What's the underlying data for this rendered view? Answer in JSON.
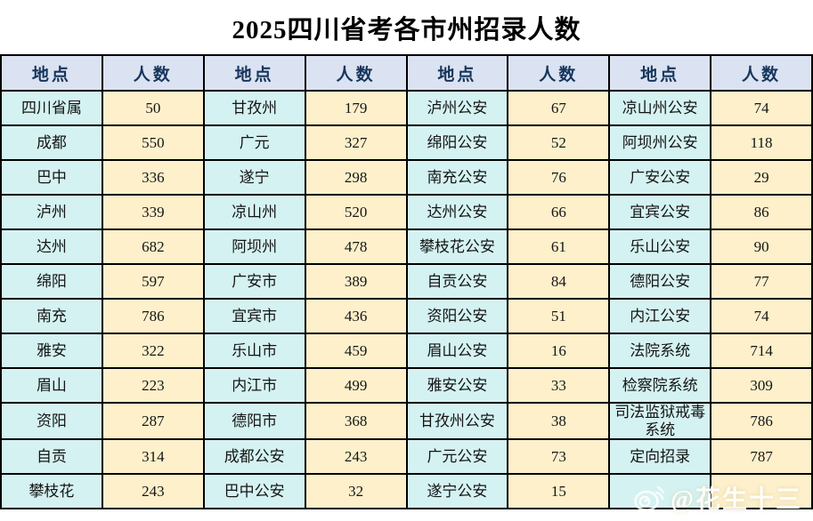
{
  "title": "2025四川省考各市州招录人数",
  "chart_data": {
    "type": "table",
    "title": "2025四川省考各市州招录人数",
    "column_headers": [
      "地点",
      "人数",
      "地点",
      "人数",
      "地点",
      "人数",
      "地点",
      "人数"
    ],
    "rows": [
      [
        "四川省属",
        "50",
        "甘孜州",
        "179",
        "泸州公安",
        "67",
        "凉山州公安",
        "74"
      ],
      [
        "成都",
        "550",
        "广元",
        "327",
        "绵阳公安",
        "52",
        "阿坝州公安",
        "118"
      ],
      [
        "巴中",
        "336",
        "遂宁",
        "298",
        "南充公安",
        "76",
        "广安公安",
        "29"
      ],
      [
        "泸州",
        "339",
        "凉山州",
        "520",
        "达州公安",
        "66",
        "宜宾公安",
        "86"
      ],
      [
        "达州",
        "682",
        "阿坝州",
        "478",
        "攀枝花公安",
        "61",
        "乐山公安",
        "90"
      ],
      [
        "绵阳",
        "597",
        "广安市",
        "389",
        "自贡公安",
        "84",
        "德阳公安",
        "77"
      ],
      [
        "南充",
        "786",
        "宜宾市",
        "436",
        "资阳公安",
        "51",
        "内江公安",
        "74"
      ],
      [
        "雅安",
        "322",
        "乐山市",
        "459",
        "眉山公安",
        "16",
        "法院系统",
        "714"
      ],
      [
        "眉山",
        "223",
        "内江市",
        "499",
        "雅安公安",
        "33",
        "检察院系统",
        "309"
      ],
      [
        "资阳",
        "287",
        "德阳市",
        "368",
        "甘孜州公安",
        "38",
        "司法监狱戒毒系统",
        "786"
      ],
      [
        "自贡",
        "314",
        "成都公安",
        "243",
        "广元公安",
        "73",
        "定向招录",
        "787"
      ],
      [
        "攀枝花",
        "243",
        "巴中公安",
        "32",
        "遂宁公安",
        "15",
        "",
        ""
      ]
    ]
  },
  "watermark": {
    "label": "@花生十三",
    "icon": "weibo-icon"
  },
  "colors": {
    "header_bg": "#dbe2f1",
    "location_bg": "#d5f2f2",
    "count_bg": "#fdf0cb",
    "border": "#000000",
    "header_text": "#16365c",
    "cell_text": "#151515"
  }
}
